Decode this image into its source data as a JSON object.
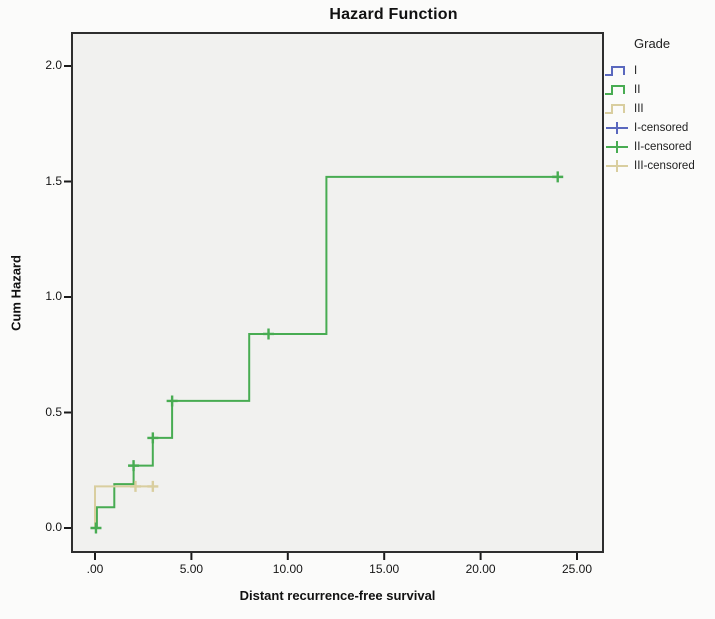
{
  "title": "Hazard Function",
  "axes": {
    "x_label": "Distant recurrence-free survival",
    "y_label": "Cum Hazard",
    "x_ticks": [
      ".00",
      "5.00",
      "10.00",
      "15.00",
      "20.00",
      "25.00"
    ],
    "y_ticks": [
      "0.0",
      "0.5",
      "1.0",
      "1.5",
      "2.0"
    ]
  },
  "legend": {
    "title": "Grade",
    "items": [
      {
        "label": "I",
        "glyph": "step",
        "color": "#5a68be"
      },
      {
        "label": "II",
        "glyph": "step",
        "color": "#48ac52"
      },
      {
        "label": "III",
        "glyph": "step",
        "color": "#d9ce9f"
      },
      {
        "label": "I-censored",
        "glyph": "plus",
        "color": "#5a68be"
      },
      {
        "label": "II-censored",
        "glyph": "plus",
        "color": "#48ac52"
      },
      {
        "label": "III-censored",
        "glyph": "plus",
        "color": "#d9ce9f"
      }
    ]
  },
  "colors": {
    "plot_background": "#f1f1ef",
    "frame": "#2e2e2e",
    "tick": "#1a1a1a",
    "grade_1": "#5a68be",
    "grade_2": "#48ac52",
    "grade_3": "#d9ce9f"
  },
  "chart_data": {
    "type": "line",
    "subtype": "step-function-cumulative-hazard",
    "title": "Hazard Function",
    "xlabel": "Distant recurrence-free survival",
    "ylabel": "Cum Hazard",
    "xlim": [
      -1.2,
      26.4
    ],
    "ylim": [
      -0.1,
      2.15
    ],
    "x_tick_values": [
      0,
      5,
      10,
      15,
      20,
      25
    ],
    "y_tick_values": [
      0.0,
      0.5,
      1.0,
      1.5,
      2.0
    ],
    "grid": false,
    "legend_position": "right",
    "series": [
      {
        "name": "I",
        "color": "#5a68be",
        "steps": [],
        "censored": []
      },
      {
        "name": "II",
        "color": "#48ac52",
        "steps": [
          [
            0,
            0
          ],
          [
            0.1,
            0
          ],
          [
            0.1,
            0.09
          ],
          [
            1,
            0.09
          ],
          [
            1,
            0.19
          ],
          [
            2,
            0.19
          ],
          [
            2,
            0.27
          ],
          [
            3,
            0.27
          ],
          [
            3,
            0.39
          ],
          [
            4,
            0.39
          ],
          [
            4,
            0.55
          ],
          [
            8,
            0.55
          ],
          [
            8,
            0.84
          ],
          [
            12,
            0.84
          ],
          [
            12,
            1.52
          ],
          [
            24,
            1.52
          ]
        ],
        "censored": [
          [
            0.05,
            0
          ],
          [
            2,
            0.27
          ],
          [
            3,
            0.39
          ],
          [
            4,
            0.55
          ],
          [
            9,
            0.84
          ],
          [
            24,
            1.52
          ]
        ]
      },
      {
        "name": "III",
        "color": "#d9ce9f",
        "steps": [
          [
            0,
            0
          ],
          [
            0,
            0.18
          ],
          [
            3,
            0.18
          ]
        ],
        "censored": [
          [
            2.1,
            0.18
          ],
          [
            3,
            0.18
          ]
        ]
      }
    ]
  }
}
